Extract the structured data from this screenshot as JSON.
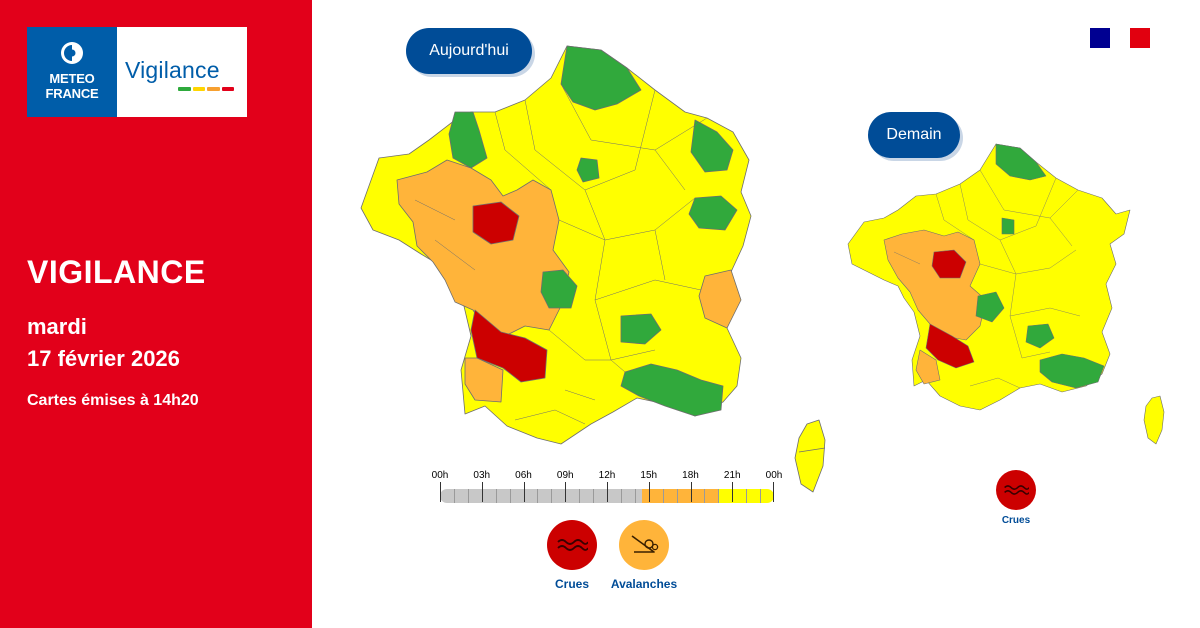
{
  "brand": {
    "meteo_line1": "METEO",
    "meteo_line2": "FRANCE",
    "vigilance_word": "Vigilance",
    "bar_colors": [
      "#2eaa3c",
      "#ffd500",
      "#f7a030",
      "#e2001a"
    ]
  },
  "headline": {
    "title": "VIGILANCE",
    "day": "mardi",
    "date": "17 février 2026",
    "issued": "Cartes émises à 14h20"
  },
  "colors": {
    "red_panel": "#e2001a",
    "navy": "#004c97",
    "vig_green": "#31a93c",
    "vig_yellow": "#ffff00",
    "vig_orange": "#ffb43a",
    "vig_red": "#cc0000",
    "flag": [
      "#000091",
      "#ffffff",
      "#e1000f"
    ]
  },
  "maps": {
    "today_label": "Aujourd'hui",
    "tomorrow_label": "Demain"
  },
  "timeline": {
    "labels": [
      "00h",
      "03h",
      "06h",
      "09h",
      "12h",
      "15h",
      "18h",
      "21h",
      "00h"
    ],
    "segments": [
      {
        "from_hour": 0,
        "to_hour": 14.5,
        "level": "none",
        "color": "#c8c8c8"
      },
      {
        "from_hour": 14.5,
        "to_hour": 20,
        "level": "orange",
        "color": "#ffb43a"
      },
      {
        "from_hour": 20,
        "to_hour": 24,
        "level": "yellow",
        "color": "#ffff00"
      }
    ]
  },
  "hazards_today": [
    {
      "label": "Crues",
      "color": "#cc0000",
      "icon": "flood-waves-icon"
    },
    {
      "label": "Avalanches",
      "color": "#ffb43a",
      "icon": "avalanche-icon"
    }
  ],
  "hazards_tomorrow": [
    {
      "label": "Crues",
      "color": "#cc0000",
      "icon": "flood-waves-icon"
    }
  ]
}
